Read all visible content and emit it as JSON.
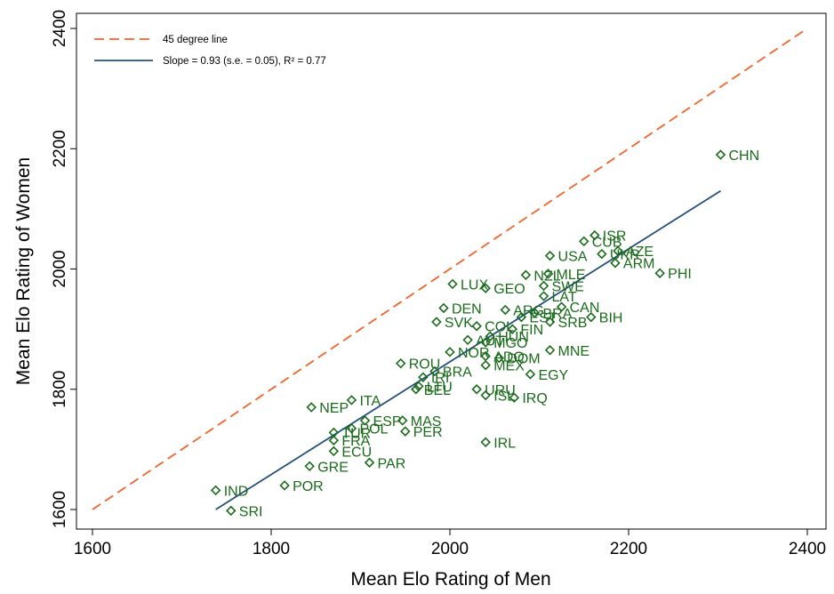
{
  "chart_data": {
    "type": "scatter",
    "xlabel": "Mean Elo Rating of Men",
    "ylabel": "Mean Elo Rating of Women",
    "xlim": [
      1600,
      2400
    ],
    "ylim": [
      1600,
      2400
    ],
    "xticks": [
      1600,
      1800,
      2000,
      2200,
      2400
    ],
    "yticks": [
      1600,
      1800,
      2000,
      2200,
      2400
    ],
    "grid": false,
    "legend_position": "top-left",
    "legend": [
      {
        "key": "diagonal",
        "label": "45 degree line",
        "style": "dashed",
        "color": "#f0642a"
      },
      {
        "key": "fit",
        "label": "Slope = 0.93 (s.e. = 0.05), R² = 0.77",
        "style": "solid",
        "color": "#24507a"
      }
    ],
    "diagonal_line": {
      "x": [
        1600,
        2400
      ],
      "y": [
        1600,
        2400
      ]
    },
    "fit_line": {
      "x": [
        1738,
        2303
      ],
      "y": [
        1600,
        2130
      ]
    },
    "marker_color": "#1a6b1a",
    "points": [
      {
        "label": "CHN",
        "x": 2303,
        "y": 2190
      },
      {
        "label": "PHI",
        "x": 2235,
        "y": 1993
      },
      {
        "label": "ISR",
        "x": 2162,
        "y": 2056
      },
      {
        "label": "CUB",
        "x": 2150,
        "y": 2046
      },
      {
        "label": "AZE",
        "x": 2188,
        "y": 2030
      },
      {
        "label": "UKR",
        "x": 2170,
        "y": 2025
      },
      {
        "label": "ARM",
        "x": 2185,
        "y": 2010
      },
      {
        "label": "USA",
        "x": 2112,
        "y": 2022
      },
      {
        "label": "NZL",
        "x": 2085,
        "y": 1990
      },
      {
        "label": "MLE",
        "x": 2110,
        "y": 1992
      },
      {
        "label": "SWE",
        "x": 2105,
        "y": 1972
      },
      {
        "label": "LAT",
        "x": 2105,
        "y": 1955
      },
      {
        "label": "CAN",
        "x": 2125,
        "y": 1937
      },
      {
        "label": "BIH",
        "x": 2158,
        "y": 1920
      },
      {
        "label": "SRB",
        "x": 2112,
        "y": 1912
      },
      {
        "label": "GEO",
        "x": 2040,
        "y": 1968
      },
      {
        "label": "LUX",
        "x": 2003,
        "y": 1975
      },
      {
        "label": "DEN",
        "x": 1993,
        "y": 1935
      },
      {
        "label": "FIN",
        "x": 2070,
        "y": 1900
      },
      {
        "label": "SVK",
        "x": 1985,
        "y": 1912
      },
      {
        "label": "COL",
        "x": 2030,
        "y": 1905
      },
      {
        "label": "ARG",
        "x": 2062,
        "y": 1932
      },
      {
        "label": "EST",
        "x": 2080,
        "y": 1920
      },
      {
        "label": "BRA",
        "x": 2095,
        "y": 1927
      },
      {
        "label": "AUT",
        "x": 2020,
        "y": 1882
      },
      {
        "label": "HUN",
        "x": 2045,
        "y": 1888
      },
      {
        "label": "MGO",
        "x": 2040,
        "y": 1878
      },
      {
        "label": "NOR",
        "x": 2000,
        "y": 1862
      },
      {
        "label": "ADO",
        "x": 2040,
        "y": 1855
      },
      {
        "label": "DOM",
        "x": 2055,
        "y": 1852
      },
      {
        "label": "MNE",
        "x": 2112,
        "y": 1865
      },
      {
        "label": "MEX",
        "x": 2040,
        "y": 1840
      },
      {
        "label": "EGY",
        "x": 2090,
        "y": 1825
      },
      {
        "label": "ROU",
        "x": 1945,
        "y": 1843
      },
      {
        "label": "BRA",
        "x": 1983,
        "y": 1830
      },
      {
        "label": "IRI",
        "x": 1970,
        "y": 1820
      },
      {
        "label": "LTU",
        "x": 1965,
        "y": 1805
      },
      {
        "label": "BEL",
        "x": 1962,
        "y": 1800
      },
      {
        "label": "URU",
        "x": 2030,
        "y": 1800
      },
      {
        "label": "ISL",
        "x": 2040,
        "y": 1790
      },
      {
        "label": "IRQ",
        "x": 2072,
        "y": 1786
      },
      {
        "label": "ITA",
        "x": 1890,
        "y": 1782
      },
      {
        "label": "NEP",
        "x": 1845,
        "y": 1770
      },
      {
        "label": "ESP",
        "x": 1905,
        "y": 1748
      },
      {
        "label": "MAS",
        "x": 1947,
        "y": 1748
      },
      {
        "label": "POL",
        "x": 1890,
        "y": 1735
      },
      {
        "label": "PER",
        "x": 1950,
        "y": 1730
      },
      {
        "label": "TUR",
        "x": 1870,
        "y": 1728
      },
      {
        "label": "FRA",
        "x": 1870,
        "y": 1715
      },
      {
        "label": "IRL",
        "x": 2040,
        "y": 1712
      },
      {
        "label": "ECU",
        "x": 1870,
        "y": 1697
      },
      {
        "label": "PAR",
        "x": 1910,
        "y": 1678
      },
      {
        "label": "GRE",
        "x": 1843,
        "y": 1672
      },
      {
        "label": "POR",
        "x": 1815,
        "y": 1640
      },
      {
        "label": "IND",
        "x": 1738,
        "y": 1632
      },
      {
        "label": "SRI",
        "x": 1755,
        "y": 1598
      }
    ]
  }
}
